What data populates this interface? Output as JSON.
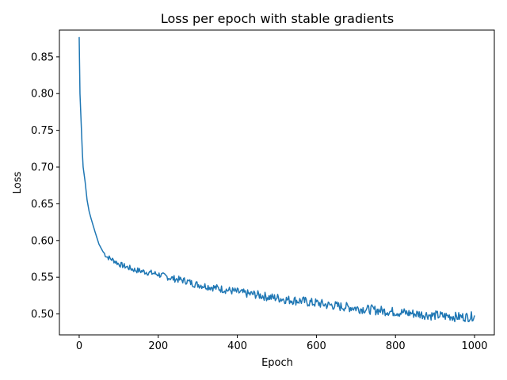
{
  "chart_data": {
    "type": "line",
    "title": "Loss per epoch with stable gradients",
    "xlabel": "Epoch",
    "ylabel": "Loss",
    "xlim": [
      -50,
      1050
    ],
    "ylim": [
      0.4715,
      0.8865
    ],
    "xticks": [
      0,
      200,
      400,
      600,
      800,
      1000
    ],
    "xtick_labels": [
      "0",
      "200",
      "400",
      "600",
      "800",
      "1000"
    ],
    "yticks": [
      0.5,
      0.55,
      0.6,
      0.65,
      0.7,
      0.75,
      0.8,
      0.85
    ],
    "ytick_labels": [
      "0.50",
      "0.55",
      "0.60",
      "0.65",
      "0.70",
      "0.75",
      "0.80",
      "0.85"
    ],
    "grid": false,
    "legend": "none",
    "line_color": "#1f77b4",
    "series": [
      {
        "x": [
          0,
          2,
          5,
          8,
          10,
          15,
          20,
          25,
          30,
          40,
          50,
          60,
          70,
          80,
          90,
          100,
          110,
          120,
          130,
          140,
          150,
          160,
          170,
          180,
          190,
          200,
          210,
          220,
          230,
          240,
          250,
          260,
          270,
          280,
          290,
          300,
          310,
          320,
          330,
          340,
          350,
          360,
          370,
          380,
          390,
          400,
          410,
          420,
          430,
          440,
          450,
          460,
          470,
          480,
          490,
          500,
          510,
          520,
          530,
          540,
          550,
          560,
          570,
          580,
          590,
          600,
          610,
          620,
          630,
          640,
          650,
          660,
          670,
          680,
          690,
          700,
          710,
          720,
          730,
          740,
          750,
          760,
          770,
          780,
          790,
          800,
          810,
          820,
          830,
          840,
          850,
          860,
          870,
          880,
          890,
          900,
          910,
          920,
          930,
          940,
          950,
          960,
          970,
          980,
          990,
          1000
        ],
        "y": [
          0.877,
          0.8,
          0.76,
          0.72,
          0.7,
          0.68,
          0.655,
          0.64,
          0.63,
          0.612,
          0.595,
          0.585,
          0.578,
          0.575,
          0.572,
          0.568,
          0.566,
          0.564,
          0.562,
          0.56,
          0.559,
          0.558,
          0.557,
          0.556,
          0.555,
          0.554,
          0.552,
          0.551,
          0.549,
          0.548,
          0.547,
          0.546,
          0.545,
          0.543,
          0.541,
          0.54,
          0.539,
          0.538,
          0.537,
          0.536,
          0.535,
          0.534,
          0.533,
          0.532,
          0.531,
          0.53,
          0.529,
          0.528,
          0.527,
          0.527,
          0.526,
          0.525,
          0.524,
          0.523,
          0.522,
          0.522,
          0.521,
          0.52,
          0.519,
          0.519,
          0.518,
          0.518,
          0.517,
          0.516,
          0.515,
          0.515,
          0.514,
          0.513,
          0.512,
          0.512,
          0.511,
          0.51,
          0.51,
          0.509,
          0.509,
          0.508,
          0.507,
          0.507,
          0.506,
          0.506,
          0.505,
          0.505,
          0.504,
          0.504,
          0.503,
          0.503,
          0.502,
          0.502,
          0.501,
          0.501,
          0.5,
          0.5,
          0.499,
          0.499,
          0.498,
          0.498,
          0.498,
          0.497,
          0.497,
          0.497,
          0.496,
          0.496,
          0.496,
          0.496,
          0.496,
          0.498
        ]
      }
    ]
  }
}
